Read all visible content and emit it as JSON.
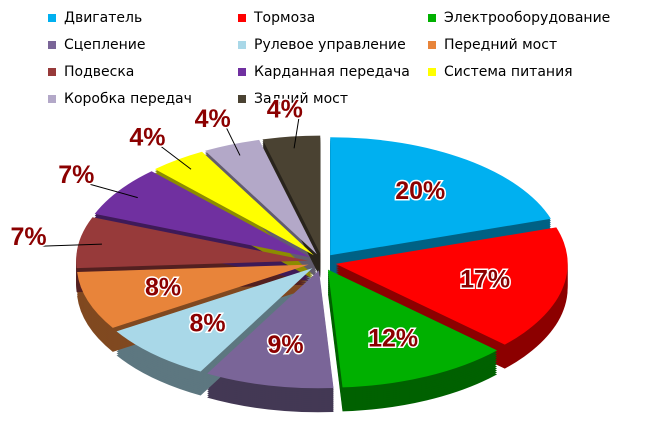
{
  "chart_data": {
    "type": "pie",
    "categories": [
      "Двигатель",
      "Тормоза",
      "Электрооборудование",
      "Сцепление",
      "Рулевое управление",
      "Передний мост",
      "Подвеска",
      "Карданная передача",
      "Система питания",
      "Коробка передач",
      "Задний мост"
    ],
    "values": [
      20,
      17,
      12,
      9,
      8,
      8,
      7,
      7,
      4,
      4,
      4
    ],
    "value_labels": [
      "20%",
      "17%",
      "12%",
      "9%",
      "8%",
      "8%",
      "7%",
      "7%",
      "4%",
      "4%",
      "4%"
    ],
    "colors": [
      "#00b0f0",
      "#ff0000",
      "#00b000",
      "#7a6598",
      "#a9d8e8",
      "#e8843a",
      "#973a3a",
      "#7030a0",
      "#ffff00",
      "#b3a8c8",
      "#4a4232"
    ]
  }
}
